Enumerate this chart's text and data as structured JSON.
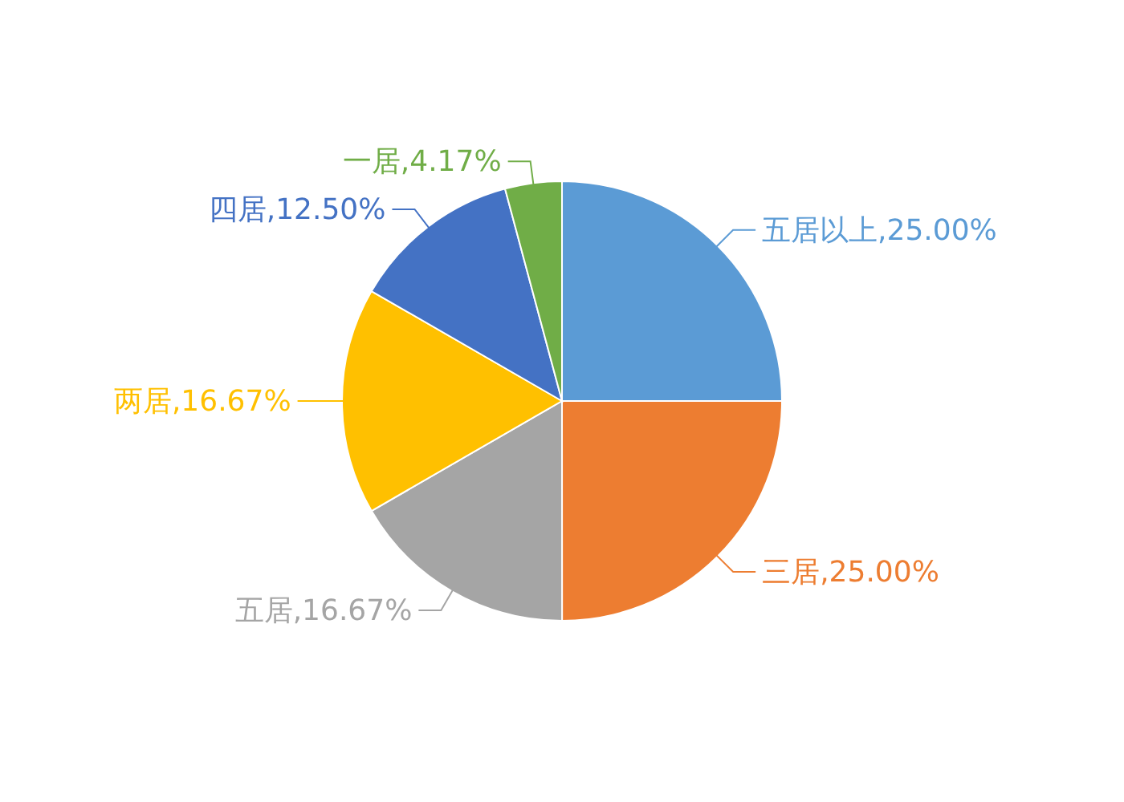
{
  "chart_data": {
    "type": "pie",
    "categories": [
      "五居以上",
      "三居",
      "五居",
      "两居",
      "四居",
      "一居"
    ],
    "values": [
      25,
      25,
      16.67,
      16.67,
      12.5,
      4.17
    ],
    "value_labels": [
      "25.00%",
      "25.00%",
      "16.67%",
      "16.67%",
      "12.50%",
      "4.17%"
    ],
    "colors": [
      "#5b9bd5",
      "#ed7d31",
      "#a5a5a5",
      "#ffc000",
      "#4472c4",
      "#70ad47"
    ]
  }
}
